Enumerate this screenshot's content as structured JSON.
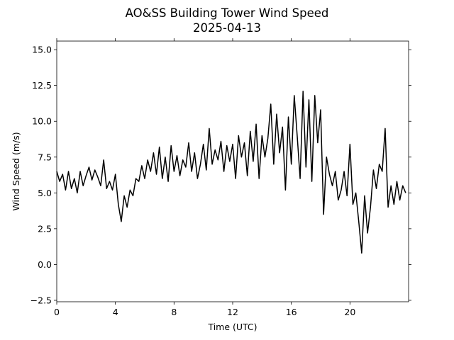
{
  "chart_data": {
    "type": "line",
    "title": "AO&SS Building Tower Wind Speed",
    "subtitle": "2025-04-13",
    "x_label": "Time (UTC)",
    "y_label": "Wind Speed (m/s)",
    "color": "#000000",
    "x": [
      0.0,
      0.2,
      0.4,
      0.6,
      0.8,
      1.0,
      1.2,
      1.4,
      1.6,
      1.8,
      2.0,
      2.2,
      2.4,
      2.6,
      2.8,
      3.0,
      3.2,
      3.4,
      3.6,
      3.8,
      4.0,
      4.2,
      4.4,
      4.6,
      4.8,
      5.0,
      5.2,
      5.4,
      5.6,
      5.8,
      6.0,
      6.2,
      6.4,
      6.6,
      6.8,
      7.0,
      7.2,
      7.4,
      7.6,
      7.8,
      8.0,
      8.2,
      8.4,
      8.6,
      8.8,
      9.0,
      9.2,
      9.4,
      9.6,
      9.8,
      10.0,
      10.2,
      10.4,
      10.6,
      10.8,
      11.0,
      11.2,
      11.4,
      11.6,
      11.8,
      12.0,
      12.2,
      12.4,
      12.6,
      12.8,
      13.0,
      13.2,
      13.4,
      13.6,
      13.8,
      14.0,
      14.2,
      14.4,
      14.6,
      14.8,
      15.0,
      15.2,
      15.4,
      15.6,
      15.8,
      16.0,
      16.2,
      16.4,
      16.6,
      16.8,
      17.0,
      17.2,
      17.4,
      17.6,
      17.8,
      18.0,
      18.2,
      18.4,
      18.6,
      18.8,
      19.0,
      19.2,
      19.4,
      19.6,
      19.8,
      20.0,
      20.2,
      20.4,
      20.6,
      20.8,
      21.0,
      21.2,
      21.4,
      21.6,
      21.8,
      22.0,
      22.2,
      22.4,
      22.6,
      22.8,
      23.0,
      23.2,
      23.4,
      23.6,
      23.8
    ],
    "values": [
      6.5,
      5.8,
      6.3,
      5.2,
      6.5,
      5.3,
      6.0,
      5.0,
      6.5,
      5.5,
      6.2,
      6.8,
      5.9,
      6.6,
      6.1,
      5.5,
      7.3,
      5.3,
      5.8,
      5.2,
      6.3,
      4.2,
      3.0,
      4.8,
      4.0,
      5.2,
      4.8,
      6.0,
      5.8,
      6.9,
      6.0,
      7.3,
      6.5,
      7.8,
      6.3,
      8.2,
      6.0,
      7.5,
      5.8,
      8.3,
      6.5,
      7.6,
      6.2,
      7.3,
      6.8,
      8.5,
      6.5,
      7.8,
      6.0,
      7.0,
      8.4,
      6.6,
      9.5,
      7.0,
      8.0,
      7.3,
      8.6,
      6.5,
      8.3,
      7.2,
      8.4,
      6.0,
      9.0,
      7.5,
      8.5,
      6.2,
      9.3,
      7.2,
      9.8,
      6.0,
      9.0,
      7.5,
      8.8,
      11.2,
      7.0,
      10.5,
      7.8,
      9.6,
      5.2,
      10.3,
      7.0,
      11.8,
      9.0,
      6.0,
      12.1,
      6.8,
      11.5,
      5.8,
      11.8,
      8.5,
      10.8,
      3.5,
      7.5,
      6.3,
      5.5,
      6.5,
      4.5,
      5.2,
      6.5,
      4.8,
      8.4,
      4.2,
      5.0,
      3.0,
      0.8,
      4.8,
      2.2,
      4.0,
      6.6,
      5.3,
      7.0,
      6.5,
      9.5,
      4.0,
      5.5,
      4.2,
      5.8,
      4.5,
      5.5,
      5.0
    ],
    "xlim": [
      0,
      24
    ],
    "ylim": [
      -2.6,
      15.6
    ],
    "xticks": [
      0,
      4,
      8,
      12,
      16,
      20
    ],
    "yticks": [
      {
        "value": -2.5,
        "label": "−2.5"
      },
      {
        "value": 0,
        "label": "0.0"
      },
      2.5,
      {
        "value": 5,
        "label": "5.0"
      },
      7.5,
      {
        "value": 10,
        "label": "10.0"
      },
      12.5,
      {
        "value": 15,
        "label": "15.0"
      }
    ]
  }
}
